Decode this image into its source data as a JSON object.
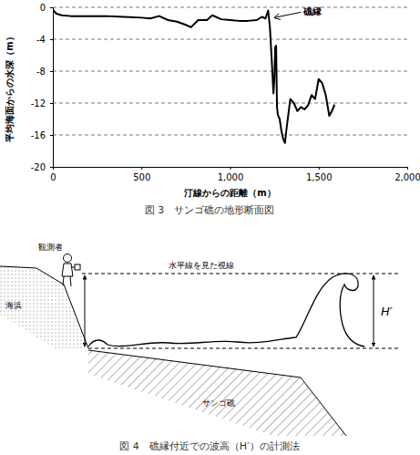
{
  "chart_data": {
    "type": "line",
    "title": "図 3　サンゴ礁の地形断面図",
    "x_label": "汀線からの距離（m）",
    "y_label": "平均海面からの水深（m）",
    "x": [
      0,
      20,
      50,
      100,
      200,
      300,
      400,
      500,
      550,
      600,
      650,
      700,
      750,
      780,
      820,
      870,
      900,
      950,
      1000,
      1050,
      1100,
      1150,
      1180,
      1200,
      1215,
      1225,
      1235,
      1245,
      1250,
      1255,
      1260,
      1265,
      1270,
      1280,
      1290,
      1300,
      1310,
      1320,
      1340,
      1360,
      1380,
      1400,
      1420,
      1440,
      1460,
      1480,
      1500,
      1520,
      1540,
      1560,
      1575,
      1590
    ],
    "values": [
      -0.3,
      -0.8,
      -1.0,
      -1.1,
      -1.1,
      -1.1,
      -1.2,
      -1.3,
      -1.4,
      -1.1,
      -1.6,
      -1.8,
      -2.2,
      -2.5,
      -1.6,
      -1.6,
      -1.0,
      -1.5,
      -1.6,
      -1.7,
      -1.7,
      -1.6,
      -1.2,
      -1.4,
      -0.4,
      -2.5,
      -6.5,
      -10.8,
      -9.0,
      -5.0,
      -4.8,
      -12.5,
      -13.5,
      -14.0,
      -15.5,
      -16.5,
      -17.0,
      -15.0,
      -11.5,
      -12.0,
      -13.0,
      -12.5,
      -12.8,
      -12.3,
      -11.0,
      -11.5,
      -9.0,
      -9.5,
      -11.0,
      -13.6,
      -13.0,
      -12.2
    ],
    "color": "#000000",
    "xlim": [
      0,
      2000
    ],
    "ylim": [
      -20,
      0
    ],
    "xticks": [
      0,
      500,
      {
        "value": 1000,
        "label": "1,000"
      },
      {
        "value": 1500,
        "label": "1,500"
      },
      {
        "value": 2000,
        "label": "2,000"
      }
    ],
    "yticks": [
      -20,
      -16,
      -12,
      -8,
      -4,
      0
    ],
    "grid": true,
    "annotations": [
      {
        "text": "礁縁",
        "x": 1235,
        "y": -1.3
      }
    ]
  },
  "diagram": {
    "observer": "観測者",
    "sight_line": "水平線を見た視線",
    "beach": "海浜",
    "reef": "サンゴ礁",
    "height": "H′",
    "caption": "図 4　礁縁付近での波高（H′）の計測法"
  }
}
